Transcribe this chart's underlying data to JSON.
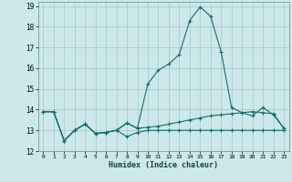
{
  "xlabel": "Humidex (Indice chaleur)",
  "xlim": [
    -0.5,
    23.5
  ],
  "ylim": [
    12,
    19.2
  ],
  "xticks": [
    0,
    1,
    2,
    3,
    4,
    5,
    6,
    7,
    8,
    9,
    10,
    11,
    12,
    13,
    14,
    15,
    16,
    17,
    18,
    19,
    20,
    21,
    22,
    23
  ],
  "yticks": [
    12,
    13,
    14,
    15,
    16,
    17,
    18,
    19
  ],
  "background_color": "#cce8e8",
  "grid_color": "#a0c8c8",
  "line_color": "#1a6b6b",
  "series1_x": [
    0,
    1,
    2,
    3,
    4,
    5,
    6,
    7,
    8,
    9,
    10,
    11,
    12,
    13,
    14,
    15,
    16,
    17,
    18,
    19,
    20,
    21,
    22,
    23
  ],
  "series1_y": [
    13.9,
    13.9,
    12.5,
    13.0,
    13.3,
    12.85,
    12.9,
    13.0,
    12.7,
    12.9,
    13.0,
    13.0,
    13.0,
    13.0,
    13.0,
    13.0,
    13.0,
    13.0,
    13.0,
    13.0,
    13.0,
    13.0,
    13.0,
    13.0
  ],
  "series2_x": [
    0,
    1,
    2,
    3,
    4,
    5,
    6,
    7,
    8,
    9,
    10,
    11,
    12,
    13,
    14,
    15,
    16,
    17,
    18,
    19,
    20,
    21,
    22,
    23
  ],
  "series2_y": [
    13.9,
    13.9,
    12.5,
    13.0,
    13.3,
    12.85,
    12.9,
    13.0,
    13.35,
    13.1,
    13.15,
    13.2,
    13.3,
    13.4,
    13.5,
    13.6,
    13.7,
    13.75,
    13.8,
    13.85,
    13.9,
    13.85,
    13.8,
    13.1
  ],
  "series3_x": [
    0,
    1,
    2,
    3,
    4,
    5,
    6,
    7,
    8,
    9,
    10,
    11,
    12,
    13,
    14,
    15,
    16,
    17,
    18,
    19,
    20,
    21,
    22,
    23
  ],
  "series3_y": [
    13.9,
    13.9,
    12.5,
    13.0,
    13.3,
    12.85,
    12.9,
    13.0,
    13.35,
    13.1,
    15.25,
    15.9,
    16.2,
    16.65,
    18.3,
    18.95,
    18.5,
    16.8,
    14.1,
    13.85,
    13.7,
    14.1,
    13.75,
    13.1
  ]
}
